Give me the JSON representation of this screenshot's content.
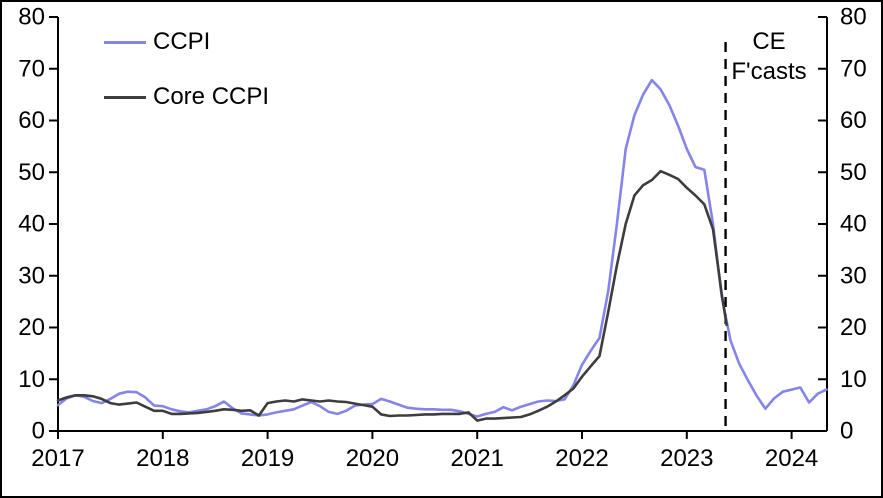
{
  "figure": {
    "legend": [
      {
        "label": "CCPI",
        "color": "#8484ea"
      },
      {
        "label": "Core CCPI",
        "color": "#3d3d3d"
      }
    ],
    "annotation": {
      "line1": "CE",
      "line2": "F'casts"
    }
  },
  "chart_data": {
    "type": "line",
    "title": "",
    "xlabel": "",
    "ylabel": "",
    "x_unit": "monthly",
    "xlim": [
      2017,
      2024.37
    ],
    "ylim": [
      0,
      80
    ],
    "y_ticks": [
      0,
      10,
      20,
      30,
      40,
      50,
      60,
      70,
      80
    ],
    "x_ticks": [
      "2017",
      "2018",
      "2019",
      "2020",
      "2021",
      "2022",
      "2023",
      "2024"
    ],
    "grid": false,
    "legend_position": "top-left",
    "dual_y_axis": true,
    "forecast_divider_x": 2023.37,
    "forecast_label": "CE F'casts",
    "axis_color": "#000000",
    "series": [
      {
        "name": "CCPI",
        "color": "#8484ea",
        "x_start": 2017,
        "values": [
          5.0,
          6.3,
          6.9,
          6.6,
          5.8,
          5.4,
          6.2,
          7.2,
          7.6,
          7.5,
          6.5,
          4.9,
          4.8,
          4.2,
          3.8,
          3.6,
          3.9,
          4.2,
          4.8,
          5.7,
          4.4,
          3.4,
          3.2,
          3.0,
          3.2,
          3.6,
          3.9,
          4.2,
          4.9,
          5.6,
          4.8,
          3.7,
          3.3,
          3.9,
          4.9,
          5.1,
          5.2,
          6.2,
          5.7,
          5.1,
          4.5,
          4.3,
          4.2,
          4.2,
          4.1,
          4.1,
          3.8,
          3.3,
          2.8,
          3.3,
          3.7,
          4.6,
          4.0,
          4.7,
          5.2,
          5.7,
          5.9,
          5.8,
          6.1,
          8.8,
          12.8,
          15.5,
          18.0,
          27.0,
          40.0,
          54.5,
          61.0,
          65.0,
          67.8,
          66.0,
          63.0,
          59.0,
          54.5,
          51.0,
          50.5,
          40.0,
          26.0,
          17.5,
          13.0,
          9.8,
          6.8,
          4.3,
          6.3,
          7.6,
          8.0,
          8.4,
          5.5,
          7.2,
          8.0
        ]
      },
      {
        "name": "Core CCPI",
        "color": "#3d3d3d",
        "x_start": 2017,
        "end_x": 2023.38,
        "values": [
          5.9,
          6.5,
          6.9,
          6.9,
          6.7,
          6.2,
          5.4,
          5.1,
          5.3,
          5.5,
          4.7,
          3.9,
          3.9,
          3.3,
          3.3,
          3.4,
          3.5,
          3.7,
          3.9,
          4.2,
          4.1,
          3.9,
          4.0,
          3.0,
          5.4,
          5.7,
          5.9,
          5.7,
          6.1,
          5.9,
          5.7,
          5.9,
          5.7,
          5.6,
          5.3,
          5.0,
          4.7,
          3.2,
          2.9,
          3.0,
          3.0,
          3.1,
          3.2,
          3.2,
          3.3,
          3.3,
          3.3,
          3.6,
          2.0,
          2.4,
          2.4,
          2.5,
          2.6,
          2.7,
          3.2,
          3.9,
          4.7,
          5.7,
          6.9,
          8.2,
          10.5,
          12.5,
          14.5,
          23.0,
          32.0,
          40.0,
          45.5,
          47.5,
          48.5,
          50.2,
          49.5,
          48.7,
          47.0,
          45.5,
          43.8,
          39.0,
          26.5,
          20.5
        ]
      }
    ]
  }
}
